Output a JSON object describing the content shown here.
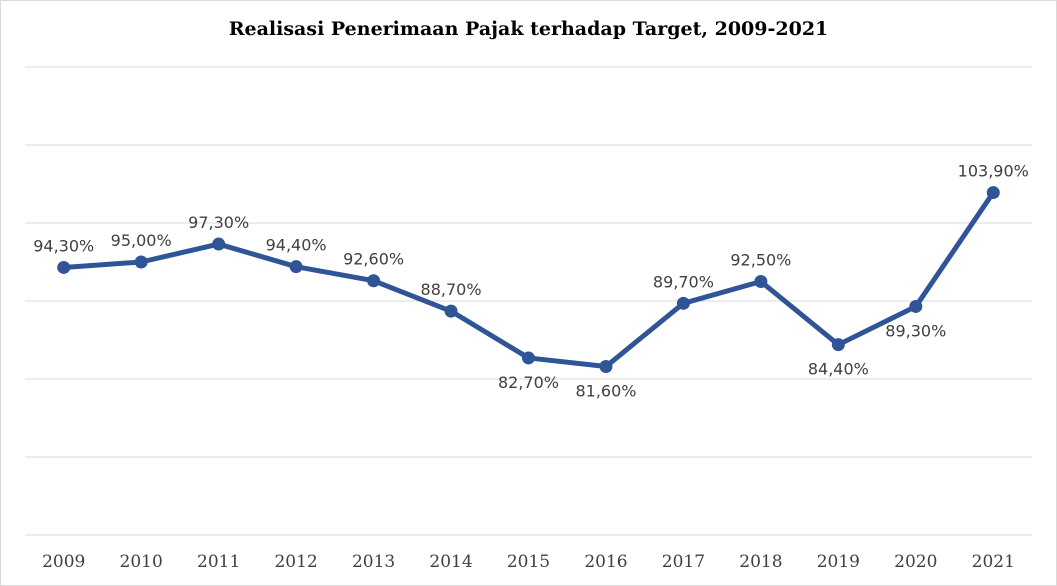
{
  "chart_data": {
    "type": "line",
    "title": "Realisasi Penerimaan Pajak terhadap Target, 2009-2021",
    "xlabel": "",
    "ylabel": "",
    "categories": [
      "2009",
      "2010",
      "2011",
      "2012",
      "2013",
      "2014",
      "2015",
      "2016",
      "2017",
      "2018",
      "2019",
      "2020",
      "2021"
    ],
    "series": [
      {
        "values": [
          94.3,
          95.0,
          97.3,
          94.4,
          92.6,
          88.7,
          82.7,
          81.6,
          89.7,
          92.5,
          84.4,
          89.3,
          103.9
        ],
        "labels": [
          "94,30%",
          "95,00%",
          "97,30%",
          "94,40%",
          "92,60%",
          "88,70%",
          "82,70%",
          "81,60%",
          "89,70%",
          "92,50%",
          "84,40%",
          "89,30%",
          "103,90%"
        ],
        "label_positions": [
          "above",
          "above",
          "above",
          "above",
          "above",
          "above",
          "below",
          "below",
          "above",
          "above",
          "below",
          "below",
          "above"
        ]
      }
    ],
    "ylim": [
      60,
      120
    ],
    "y_gridlines": [
      60,
      70,
      80,
      90,
      100,
      110,
      120
    ],
    "y_tick_labels_shown": false,
    "grid": true,
    "legend": "none",
    "colors": {
      "line": "#2f5597",
      "grid": "#d9d9d9",
      "text": "#404040"
    }
  }
}
